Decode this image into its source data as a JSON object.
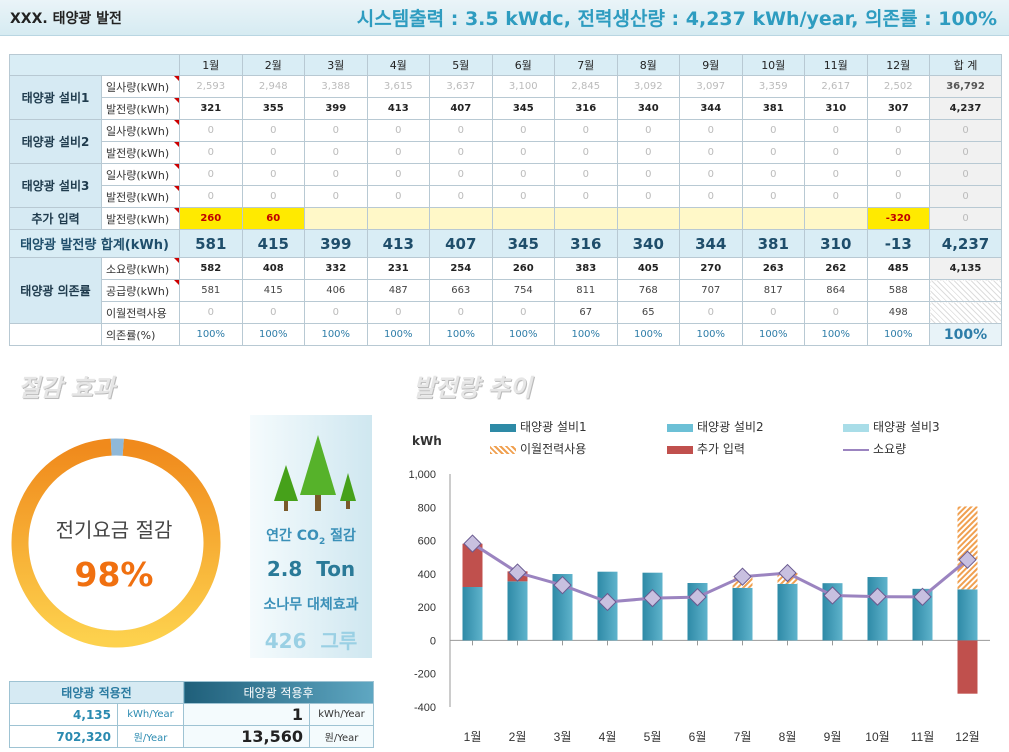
{
  "header": {
    "title": "XXX. 태양광 발전",
    "summary": "시스템출력 : 3.5 kWdc, 전력생산량 : 4,237 kWh/year, 의존률 : 100%"
  },
  "table": {
    "months": [
      "1월",
      "2월",
      "3월",
      "4월",
      "5월",
      "6월",
      "7월",
      "8월",
      "9월",
      "10월",
      "11월",
      "12월"
    ],
    "total_header": "합 계",
    "g1": "태양광 설비1",
    "g2": "태양광 설비2",
    "g3": "태양광 설비3",
    "lbl_ilsa": "일사량(kWh)",
    "lbl_bal": "발전량(kWh)",
    "extra_label": "추가 입력",
    "sum_label": "태양광 발전량 합계(kWh)",
    "dep_label": "태양광 의존률",
    "lbl_use": "소요량(kWh)",
    "lbl_supply": "공급량(kWh)",
    "lbl_carry": "이월전력사용",
    "lbl_dep": "의존률(%)",
    "rows": {
      "s1_ilsa": [
        "2,593",
        "2,948",
        "3,388",
        "3,615",
        "3,637",
        "3,100",
        "2,845",
        "3,092",
        "3,097",
        "3,359",
        "2,617",
        "2,502"
      ],
      "s1_ilsa_total": "36,792",
      "s1_bal": [
        "321",
        "355",
        "399",
        "413",
        "407",
        "345",
        "316",
        "340",
        "344",
        "381",
        "310",
        "307"
      ],
      "s1_bal_total": "4,237",
      "zero": [
        "0",
        "0",
        "0",
        "0",
        "0",
        "0",
        "0",
        "0",
        "0",
        "0",
        "0",
        "0"
      ],
      "zero_total": "0",
      "extra": [
        "260",
        "60",
        "",
        "",
        "",
        "",
        "",
        "",
        "",
        "",
        "",
        "-320"
      ],
      "extra_total": "0",
      "sum": [
        "581",
        "415",
        "399",
        "413",
        "407",
        "345",
        "316",
        "340",
        "344",
        "381",
        "310",
        "-13"
      ],
      "sum_total": "4,237",
      "use": [
        "582",
        "408",
        "332",
        "231",
        "254",
        "260",
        "383",
        "405",
        "270",
        "263",
        "262",
        "485"
      ],
      "use_total": "4,135",
      "supply": [
        "581",
        "415",
        "406",
        "487",
        "663",
        "754",
        "811",
        "768",
        "707",
        "817",
        "864",
        "588"
      ],
      "carry": [
        "0",
        "0",
        "0",
        "0",
        "0",
        "0",
        "67",
        "65",
        "0",
        "0",
        "0",
        "498"
      ],
      "dep": [
        "100%",
        "100%",
        "100%",
        "100%",
        "100%",
        "100%",
        "100%",
        "100%",
        "100%",
        "100%",
        "100%",
        "100%"
      ],
      "dep_total": "100%"
    }
  },
  "savings": {
    "title": "절감 효과",
    "donut_label": "전기요금 절감",
    "donut_pct": "98%",
    "donut_fraction": 0.98,
    "co2_label_a": "연간 CO",
    "co2_sub": "2",
    "co2_label_b": " 절감",
    "co2_value": "2.8",
    "co2_unit": "Ton",
    "tree_label": "소나무 대체효과",
    "tree_value": "426",
    "tree_unit": "그루"
  },
  "compare": {
    "before_header": "태양광 적용전",
    "after_header": "태양광 적용후",
    "before_kwh": "4,135",
    "before_kwh_unit": "kWh/Year",
    "before_won": "702,320",
    "before_won_unit": "원/Year",
    "after_kwh": "1",
    "after_kwh_unit": "kWh/Year",
    "after_won": "13,560",
    "after_won_unit": "원/Year"
  },
  "chart_data": {
    "type": "bar",
    "title": "발전량 추이",
    "ylabel": "kWh",
    "categories": [
      "1월",
      "2월",
      "3월",
      "4월",
      "5월",
      "6월",
      "7월",
      "8월",
      "9월",
      "10월",
      "11월",
      "12월"
    ],
    "ylim": [
      -400,
      1000
    ],
    "yticks": [
      "1,000",
      "800",
      "600",
      "400",
      "200",
      "0",
      "-200",
      "-400"
    ],
    "series": [
      {
        "name": "태양광 설비1",
        "values": [
          321,
          355,
          399,
          413,
          407,
          345,
          316,
          340,
          344,
          381,
          310,
          307
        ],
        "color": "#2e8aa6"
      },
      {
        "name": "태양광 설비2",
        "values": [
          0,
          0,
          0,
          0,
          0,
          0,
          0,
          0,
          0,
          0,
          0,
          0
        ],
        "color": "#6cc0d6"
      },
      {
        "name": "태양광 설비3",
        "values": [
          0,
          0,
          0,
          0,
          0,
          0,
          0,
          0,
          0,
          0,
          0,
          0
        ],
        "color": "#a9dde8"
      },
      {
        "name": "이월전력사용",
        "values": [
          0,
          0,
          0,
          0,
          0,
          0,
          67,
          65,
          0,
          0,
          0,
          498
        ],
        "color": "#f0a050"
      },
      {
        "name": "추가 입력",
        "values": [
          260,
          60,
          0,
          0,
          0,
          0,
          0,
          0,
          0,
          0,
          0,
          -320
        ],
        "color": "#c0504d"
      },
      {
        "name": "소요량",
        "values": [
          582,
          408,
          332,
          231,
          254,
          260,
          383,
          405,
          270,
          263,
          262,
          485
        ],
        "color": "#9b84c0"
      }
    ]
  }
}
